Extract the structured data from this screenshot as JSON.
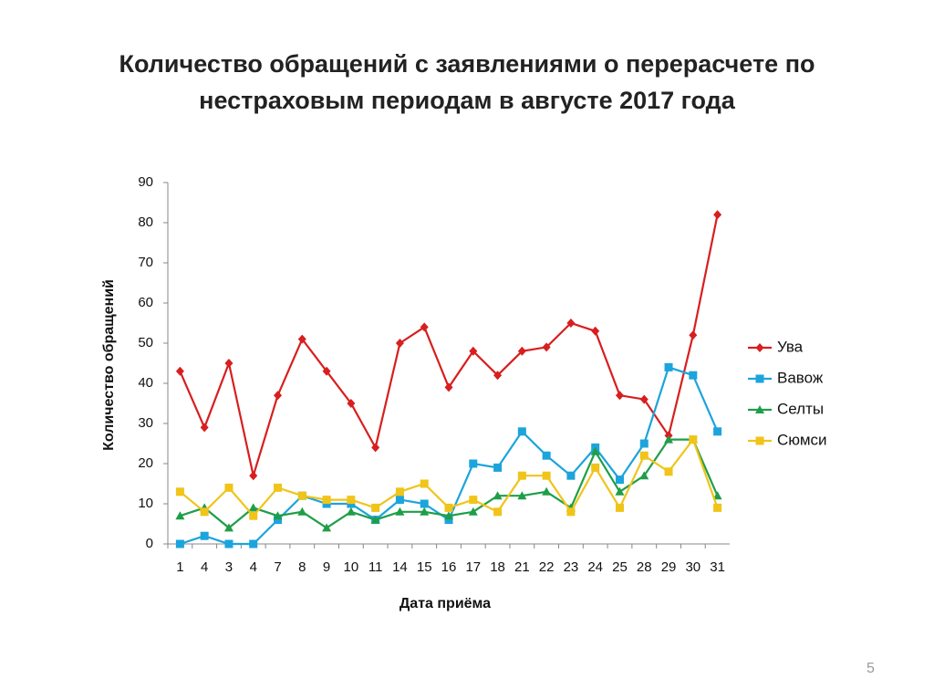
{
  "chart_data": {
    "type": "line",
    "title": "Количество обращений с заявлениями о перерасчете по нестраховым периодам в августе 2017 года",
    "x_label": "Дата приёма",
    "y_label": "Количество обращений",
    "categories": [
      "1",
      "4",
      "3",
      "4",
      "7",
      "8",
      "9",
      "10",
      "11",
      "14",
      "15",
      "16",
      "17",
      "18",
      "21",
      "22",
      "23",
      "24",
      "25",
      "28",
      "29",
      "30",
      "31"
    ],
    "series": [
      {
        "name": "Ува",
        "color": "#d81e1e",
        "marker": "diamond",
        "values": [
          43,
          29,
          45,
          17,
          37,
          51,
          43,
          35,
          24,
          50,
          54,
          39,
          48,
          42,
          48,
          49,
          55,
          53,
          37,
          36,
          27,
          52,
          82
        ]
      },
      {
        "name": "Вавож",
        "color": "#1ca4dc",
        "marker": "square",
        "values": [
          0,
          2,
          0,
          0,
          6,
          12,
          10,
          10,
          6,
          11,
          10,
          6,
          20,
          19,
          28,
          22,
          17,
          24,
          16,
          25,
          44,
          42,
          28
        ]
      },
      {
        "name": "Селты",
        "color": "#1f9e48",
        "marker": "triangle",
        "values": [
          7,
          9,
          4,
          9,
          7,
          8,
          4,
          8,
          6,
          8,
          8,
          7,
          8,
          12,
          12,
          13,
          9,
          23,
          13,
          17,
          26,
          26,
          12
        ]
      },
      {
        "name": "Сюмси",
        "color": "#f0c419",
        "marker": "square",
        "values": [
          13,
          8,
          14,
          7,
          14,
          12,
          11,
          11,
          9,
          13,
          15,
          9,
          11,
          8,
          17,
          17,
          8,
          19,
          9,
          22,
          18,
          26,
          9
        ]
      }
    ],
    "ylim": [
      0,
      90
    ],
    "yticks": [
      0,
      10,
      20,
      30,
      40,
      50,
      60,
      70,
      80,
      90
    ],
    "grid": false,
    "legend": "right"
  },
  "page_number": "5"
}
